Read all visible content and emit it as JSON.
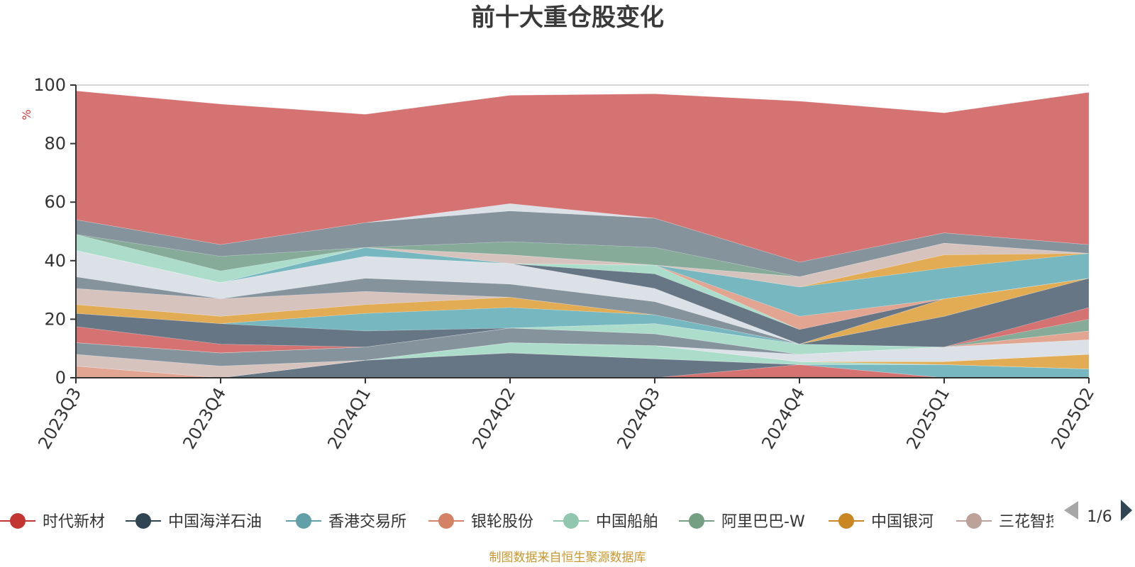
{
  "title": "前十大重仓股变化",
  "footer": "制图数据来自恒生聚源数据库",
  "legend_page": "1/6",
  "chart_data": {
    "type": "area",
    "title": "前十大重仓股变化",
    "ylabel": "%",
    "ylim": [
      0,
      100
    ],
    "yticks": [
      0,
      20,
      40,
      60,
      80,
      100
    ],
    "grid": true,
    "legend_position": "bottom",
    "categories": [
      "2023Q3",
      "2023Q4",
      "2024Q1",
      "2024Q2",
      "2024Q3",
      "2024Q4",
      "2025Q1",
      "2025Q2"
    ],
    "series": [
      {
        "name": "时代新材",
        "color": "#d36c6c",
        "values": [
          0,
          0,
          0,
          0,
          0,
          4.5,
          0,
          0
        ]
      },
      {
        "name": "中国海洋石油",
        "color": "#5f6f7e",
        "values": [
          0,
          0,
          6,
          8.5,
          6.5,
          0,
          0,
          0
        ]
      },
      {
        "name": "香港交易所",
        "color": "#6fb3bd",
        "values": [
          0,
          0,
          0,
          0,
          0,
          0,
          4.5,
          3
        ]
      },
      {
        "name": "银轮股份",
        "color": "#e0a08c",
        "values": [
          4,
          0,
          0,
          0,
          0,
          0,
          0,
          0
        ]
      },
      {
        "name": "中国船舶",
        "color": "#a8dbc8",
        "values": [
          0,
          0,
          0,
          3.5,
          4.5,
          1,
          0,
          0
        ]
      },
      {
        "name": "阿里巴巴-W",
        "color": "#7fa793",
        "values": [
          0,
          0,
          0,
          0,
          0,
          0,
          0,
          0
        ]
      },
      {
        "name": "中国银河",
        "color": "#e0a84c",
        "values": [
          0,
          0,
          0,
          0,
          0,
          0,
          1,
          5
        ]
      },
      {
        "name": "三花智控",
        "color": "#d5c0bb",
        "values": [
          4,
          4,
          0,
          0,
          0,
          0,
          0,
          0
        ]
      },
      {
        "name": "",
        "color": "#dadee6",
        "values": [
          0,
          0,
          0,
          0,
          0,
          2.5,
          5,
          5
        ]
      },
      {
        "name": "",
        "color": "#7e8d98",
        "values": [
          4,
          4.5,
          4.5,
          5,
          4,
          0,
          0,
          0
        ]
      },
      {
        "name": "",
        "color": "#e0a08c",
        "values": [
          0,
          0,
          0,
          0,
          0,
          0,
          0,
          3
        ]
      },
      {
        "name": "",
        "color": "#a8dbc8",
        "values": [
          0,
          0,
          0,
          0,
          3.5,
          3.5,
          0,
          0
        ]
      },
      {
        "name": "",
        "color": "#7fa793",
        "values": [
          0,
          0,
          0,
          0,
          0,
          0,
          0,
          4
        ]
      },
      {
        "name": "",
        "color": "#d36c6c",
        "values": [
          5.5,
          3,
          0,
          0,
          0,
          0,
          0,
          4
        ]
      },
      {
        "name": "",
        "color": "#5f6f7e",
        "values": [
          4.5,
          7,
          5.5,
          0,
          0,
          0,
          10.5,
          10
        ]
      },
      {
        "name": "",
        "color": "#6fb3bd",
        "values": [
          0,
          0,
          6,
          7,
          3,
          0,
          0,
          0
        ]
      },
      {
        "name": "",
        "color": "#e0a84c",
        "values": [
          3,
          2.5,
          3,
          3.5,
          0,
          0,
          6,
          0
        ]
      },
      {
        "name": "",
        "color": "#d5c0bb",
        "values": [
          5.5,
          6,
          4.5,
          0,
          0,
          0,
          0,
          0
        ]
      },
      {
        "name": "",
        "color": "#7e8d98",
        "values": [
          4,
          0,
          4.5,
          4.5,
          4.5,
          0,
          0,
          0
        ]
      },
      {
        "name": "",
        "color": "#dadee6",
        "values": [
          9,
          5.5,
          7.5,
          7,
          4.5,
          0,
          0,
          0
        ]
      },
      {
        "name": "",
        "color": "#5f6f7e",
        "values": [
          0,
          0,
          0,
          0,
          5,
          5,
          0,
          0
        ]
      },
      {
        "name": "",
        "color": "#a8dbc8",
        "values": [
          0,
          0,
          0,
          0,
          3,
          0,
          0,
          0
        ]
      },
      {
        "name": "",
        "color": "#e0a08c",
        "values": [
          0,
          0,
          0,
          0,
          0,
          4.5,
          0,
          0
        ]
      },
      {
        "name": "",
        "color": "#6fb3bd",
        "values": [
          0,
          0,
          3,
          0,
          0,
          10,
          10.5,
          8.5
        ]
      },
      {
        "name": "",
        "color": "#e0a84c",
        "values": [
          0,
          0,
          0,
          0,
          0,
          0,
          4.5,
          0
        ]
      },
      {
        "name": "",
        "color": "#d5c0bb",
        "values": [
          0,
          0,
          0,
          3,
          0,
          3.5,
          4,
          0
        ]
      },
      {
        "name": "",
        "color": "#a8dbc8",
        "values": [
          5.5,
          4,
          0,
          0,
          0,
          0,
          0,
          0
        ]
      },
      {
        "name": "",
        "color": "#7fa793",
        "values": [
          0,
          5,
          0,
          4.5,
          6,
          0,
          0,
          0
        ]
      },
      {
        "name": "",
        "color": "#7e8d98",
        "values": [
          5,
          4,
          8.5,
          10.5,
          10,
          5,
          3.5,
          3
        ]
      },
      {
        "name": "",
        "color": "#dadee6",
        "values": [
          0,
          0,
          0,
          2.5,
          0,
          0,
          0,
          0
        ]
      },
      {
        "name": "",
        "color": "#d36c6c",
        "values": [
          44,
          48,
          37,
          37,
          42.5,
          55,
          41,
          52
        ]
      }
    ]
  },
  "legend": {
    "items": [
      {
        "name": "时代新材",
        "color": "#c23531"
      },
      {
        "name": "中国海洋石油",
        "color": "#2f4554"
      },
      {
        "name": "香港交易所",
        "color": "#61a0a8"
      },
      {
        "name": "银轮股份",
        "color": "#d48265"
      },
      {
        "name": "中国船舶",
        "color": "#91c7ae"
      },
      {
        "name": "阿里巴巴-W",
        "color": "#749f83"
      },
      {
        "name": "中国银河",
        "color": "#ca8622"
      },
      {
        "name": "三花智控",
        "color": "#bda29a"
      }
    ]
  }
}
